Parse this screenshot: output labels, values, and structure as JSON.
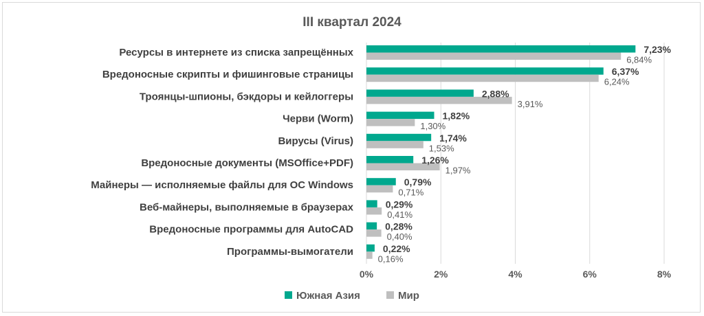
{
  "chart_data": {
    "type": "bar",
    "orientation": "horizontal",
    "title": "III квартал 2024",
    "categories": [
      "Ресурсы в интернете из списка запрещённых",
      "Вредоносные скрипты и фишинговые страницы",
      "Троянцы-шпионы, бэкдоры и кейлоггеры",
      "Черви (Worm)",
      "Вирусы (Virus)",
      "Вредоносные документы (MSOffice+PDF)",
      "Майнеры — исполняемые файлы для ОС Windows",
      "Веб-майнеры, выполняемые в браузерах",
      "Вредоносные программы для AutoCAD",
      "Программы-вымогатели"
    ],
    "series": [
      {
        "name": "Южная Азия",
        "color": "#00a88e",
        "values": [
          7.23,
          6.37,
          2.88,
          1.82,
          1.74,
          1.26,
          0.79,
          0.29,
          0.28,
          0.22
        ],
        "labels": [
          "7,23%",
          "6,37%",
          "2,88%",
          "1,82%",
          "1,74%",
          "1,26%",
          "0,79%",
          "0,29%",
          "0,28%",
          "0,22%"
        ]
      },
      {
        "name": "Мир",
        "color": "#bfbfbf",
        "values": [
          6.84,
          6.24,
          3.91,
          1.3,
          1.53,
          1.97,
          0.71,
          0.41,
          0.4,
          0.16
        ],
        "labels": [
          "6,84%",
          "6,24%",
          "3,91%",
          "1,30%",
          "1,53%",
          "1,97%",
          "0,71%",
          "0,41%",
          "0,40%",
          "0,16%"
        ]
      }
    ],
    "xlim": [
      0,
      8
    ],
    "xticks": [
      "0%",
      "2%",
      "4%",
      "6%",
      "8%"
    ],
    "grid": true,
    "legend_position": "bottom"
  }
}
